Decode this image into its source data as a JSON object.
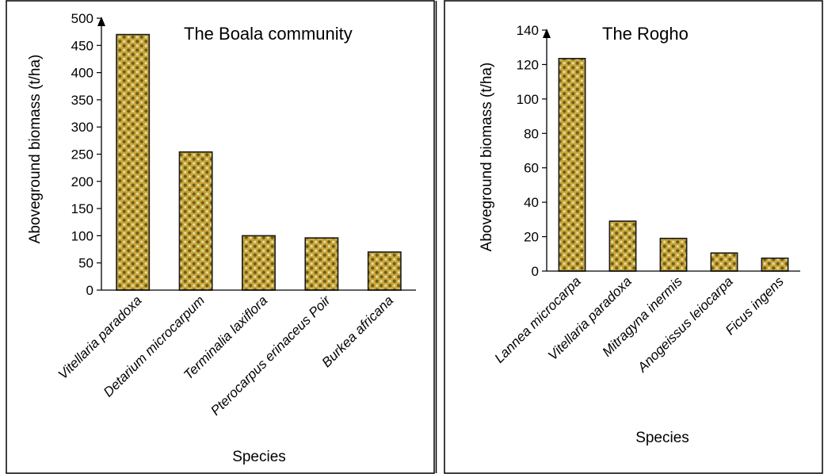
{
  "colors": {
    "bar_base": "#c7a63d",
    "bar_dot_dark": "#7a5a12",
    "bar_dot_light": "#d9e6a8",
    "bar_outline": "#1a1a1a",
    "axis": "#000000",
    "border": "#000000"
  },
  "chart_data": [
    {
      "type": "bar",
      "title": "The Boala community",
      "xlabel": "Species",
      "ylabel": "Aboveground biomass (t/ha)",
      "ylim": [
        0,
        500
      ],
      "yticks": [
        0,
        50,
        100,
        150,
        200,
        250,
        300,
        350,
        400,
        450,
        500
      ],
      "categories": [
        "Vitellaria paradoxa",
        "Detarium microcarpum",
        "Terminalia laxiflora",
        "Pterocarpus erinaceus Poir",
        "Burkea africana"
      ],
      "values": [
        470,
        254,
        100,
        96,
        70
      ],
      "grid": false
    },
    {
      "type": "bar",
      "title": "The Rogho",
      "xlabel": "Species",
      "ylabel": "Aboveground biomass (t/ha)",
      "ylim": [
        0,
        140
      ],
      "yticks": [
        0,
        20,
        40,
        60,
        80,
        100,
        120,
        140
      ],
      "categories": [
        "Lannea microcarpa",
        "Vitellaria paradoxa",
        "Mitragyna inermis",
        "Anogeissus leiocarpa",
        "Ficus ingens"
      ],
      "values": [
        123.5,
        29,
        19,
        10.5,
        7.5
      ],
      "grid": false
    }
  ]
}
